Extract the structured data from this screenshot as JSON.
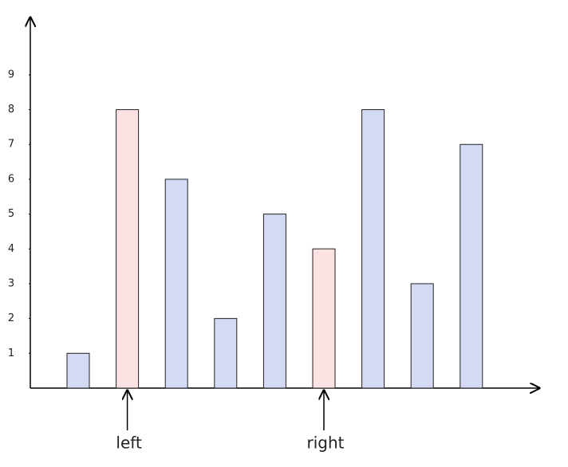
{
  "chart_data": {
    "type": "bar",
    "categories": [
      null,
      null,
      null,
      null,
      null,
      null,
      null,
      null,
      null
    ],
    "values": [
      1,
      8,
      6,
      2,
      5,
      4,
      8,
      3,
      7
    ],
    "colors": [
      "#d4daf3",
      "#fde2e4",
      "#d4daf3",
      "#d4daf3",
      "#d4daf3",
      "#fde2e4",
      "#d4daf3",
      "#d4daf3",
      "#d4daf3"
    ],
    "ylim": [
      0,
      10.6
    ],
    "yticks": [
      1,
      2,
      3,
      4,
      5,
      6,
      7,
      8,
      9
    ],
    "annotations": [
      {
        "text": "left",
        "category": 1
      },
      {
        "text": "right",
        "category": 5
      }
    ]
  }
}
